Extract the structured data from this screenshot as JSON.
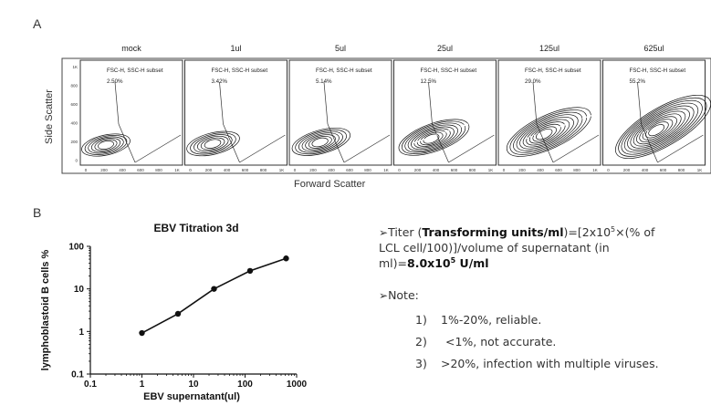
{
  "panelA": {
    "letter": "A",
    "ylabel": "Side Scatter",
    "xlabel": "Forward Scatter",
    "gate_label": "FSC-H, SSC-H subset",
    "yticks": [
      "1K",
      "800",
      "600",
      "400",
      "200",
      "0"
    ],
    "xticks": [
      "0",
      "200",
      "400",
      "600",
      "800",
      "1K"
    ],
    "samples": [
      {
        "name": "mock",
        "pct": "2.50%",
        "spread": 0.0
      },
      {
        "name": "1ul",
        "pct": "3.42%",
        "spread": 0.08
      },
      {
        "name": "5ul",
        "pct": "5.14%",
        "spread": 0.18
      },
      {
        "name": "25ul",
        "pct": "12.5%",
        "spread": 0.42
      },
      {
        "name": "125ul",
        "pct": "29.0%",
        "spread": 0.72
      },
      {
        "name": "625ul",
        "pct": "55.2%",
        "spread": 1.0
      }
    ]
  },
  "panelB": {
    "letter": "B",
    "chart_data": {
      "type": "line",
      "title": "EBV Titration 3d",
      "xlabel": "EBV supernatant(ul)",
      "ylabel": "lymphoblastoid B cells %",
      "xscale": "log",
      "yscale": "log",
      "xlim": [
        0.1,
        1000
      ],
      "ylim": [
        0.1,
        100
      ],
      "xticks": [
        "0.1",
        "1",
        "10",
        "100",
        "1000"
      ],
      "yticks": [
        "0.1",
        "1",
        "10",
        "100"
      ],
      "x": [
        1,
        5,
        25,
        125,
        625
      ],
      "y": [
        0.92,
        2.6,
        10,
        26.5,
        52
      ]
    },
    "notes": {
      "titer_prefix": "Titer (",
      "titer_bold": "Transforming units/ml",
      "titer_mid1": ")=[2x10",
      "titer_sup1": "5",
      "titer_mid2": "×(% of",
      "titer_line2": "LCL cell/100)]/volume of supernatant (in",
      "titer_line3a": "ml)=",
      "titer_result": "8.0x10",
      "titer_sup2": "5",
      "titer_unit": " U/ml",
      "note_label": "Note:",
      "items": [
        {
          "num": "1)",
          "text": "1%-20%, reliable."
        },
        {
          "num": "2)",
          "text": "<1%, not accurate."
        },
        {
          "num": "3)",
          "text": ">20%, infection with multiple viruses."
        }
      ]
    }
  }
}
